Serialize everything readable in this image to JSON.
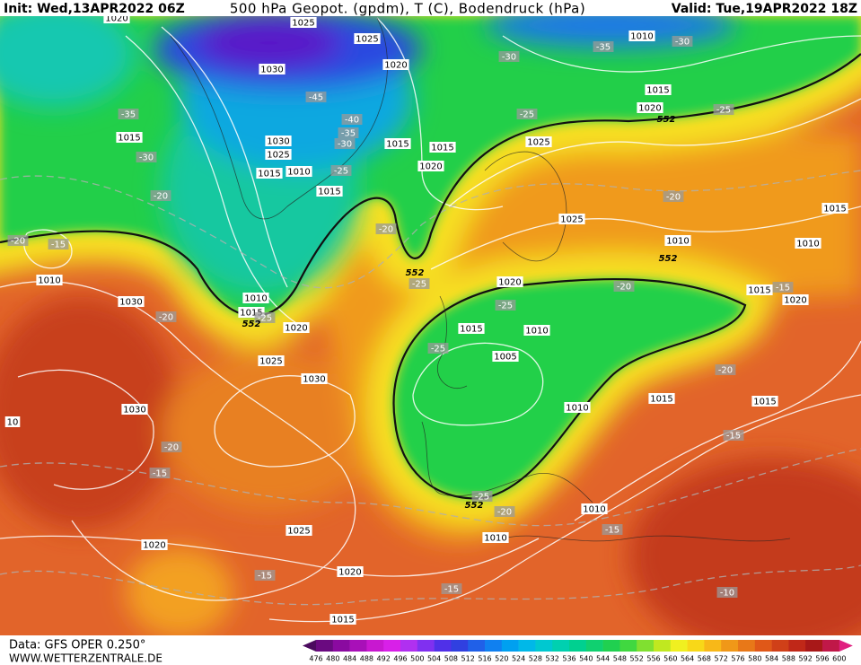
{
  "header": {
    "init": "Init: Wed,13APR2022 06Z",
    "title": "500 hPa Geopot. (gpdm), T (C), Bodendruck (hPa)",
    "valid": "Valid: Tue,19APR2022 18Z"
  },
  "footer": {
    "data_source": "Data: GFS OPER 0.250°",
    "website": "WWW.WETTERZENTRALE.DE"
  },
  "colorbar": {
    "labels": [
      476,
      480,
      484,
      488,
      492,
      496,
      500,
      504,
      508,
      512,
      516,
      520,
      524,
      528,
      532,
      536,
      540,
      544,
      548,
      552,
      556,
      560,
      564,
      568,
      572,
      576,
      580,
      584,
      588,
      592,
      596,
      600
    ],
    "colors": [
      "#4b0a5e",
      "#6a0a80",
      "#8a0aa0",
      "#a810b8",
      "#c818d0",
      "#d820e8",
      "#b030f0",
      "#8030f0",
      "#5030e8",
      "#3040e0",
      "#2060e8",
      "#1080f0",
      "#00a0f0",
      "#00b8e8",
      "#00c8d0",
      "#00d0b0",
      "#00d090",
      "#10d070",
      "#20d050",
      "#40d840",
      "#80e030",
      "#c0e820",
      "#f0f020",
      "#f8d818",
      "#f8b818",
      "#f09818",
      "#e87818",
      "#e05818",
      "#d04018",
      "#c02818",
      "#a81818",
      "#c01848",
      "#e02080"
    ]
  },
  "map": {
    "isobar_labels": [
      "1020",
      "1025",
      "1025",
      "1010",
      "1030",
      "1020",
      "1015",
      "1020",
      "1015",
      "1030",
      "1025",
      "1015",
      "1010",
      "1015",
      "1015",
      "1020",
      "1025",
      "1015",
      "1025",
      "1010",
      "1015",
      "1010",
      "1010",
      "1030",
      "1010",
      "1015",
      "1020",
      "1020",
      "1015",
      "1020",
      "1015",
      "1010",
      "1005",
      "1025",
      "1030",
      "1015",
      "1015",
      "1010",
      "1030",
      "1010",
      "1025",
      "1010",
      "1020",
      "1020",
      "1015",
      "10"
    ],
    "temperature_labels": [
      "-35",
      "-30",
      "-30",
      "-45",
      "-35",
      "-40",
      "-35",
      "-30",
      "-25",
      "-25",
      "-30",
      "-25",
      "-20",
      "-20",
      "-20",
      "-15",
      "-20",
      "-25",
      "-20",
      "-15",
      "-20",
      "-25",
      "-25",
      "-25",
      "-20",
      "-15",
      "-20",
      "-15",
      "-25",
      "-20",
      "-15",
      "-15",
      "-15",
      "-10"
    ],
    "contour_552_labels": [
      "552",
      "552",
      "552",
      "552",
      "552"
    ]
  }
}
